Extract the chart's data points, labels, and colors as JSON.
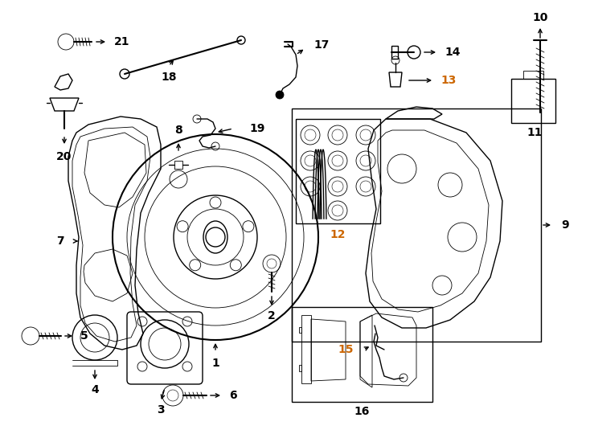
{
  "bg_color": "#ffffff",
  "line_color": "#000000",
  "orange": "#CC6600",
  "fig_width": 7.34,
  "fig_height": 5.4,
  "dpi": 100,
  "lw": 1.0,
  "lw_thick": 1.5,
  "lw_thin": 0.6,
  "fontsize": 10,
  "fontsize_sm": 9
}
